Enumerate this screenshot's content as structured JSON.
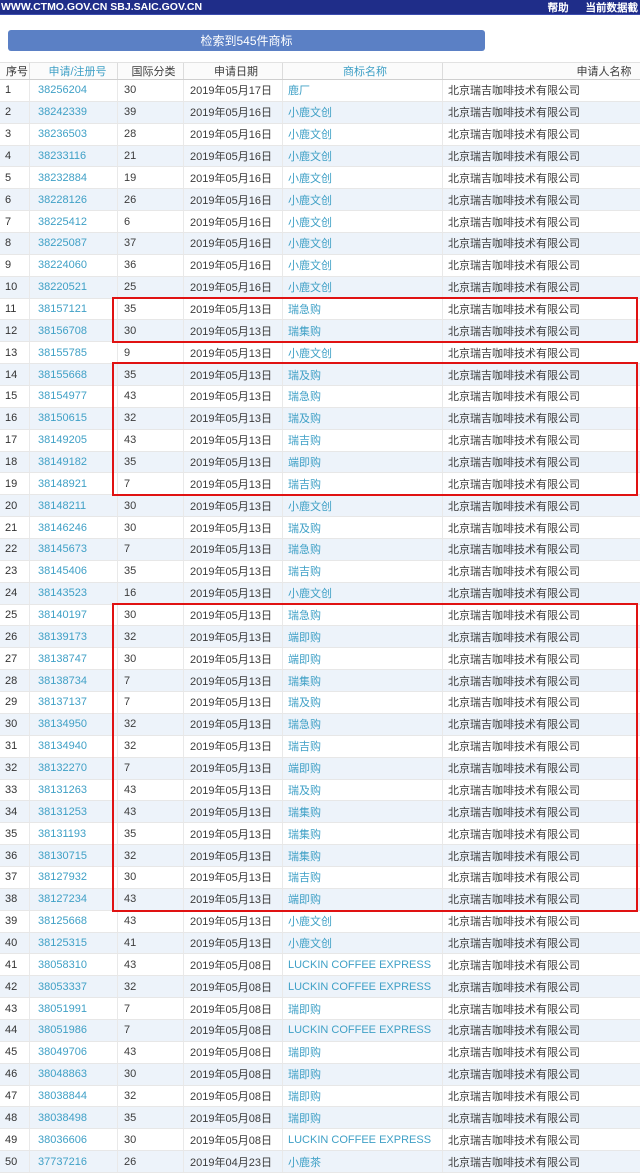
{
  "topbar": {
    "site_label": "WWW.CTMO.GOV.CN SBJ.SAIC.GOV.CN",
    "help_label": "帮助",
    "data_cutoff_label": "当前数据截"
  },
  "banner": {
    "result_text": "检索到545件商标"
  },
  "colors": {
    "topbar_bg": "#1f2d89",
    "banner_bg": "#5b80c5",
    "link": "#3fa0c6",
    "row_alt_bg": "#edf3fa",
    "highlight_border": "#e01212"
  },
  "table": {
    "headers": [
      "序号",
      "申请/注册号",
      "国际分类",
      "申请日期",
      "商标名称",
      "申请人名称"
    ],
    "rows": [
      [
        "1",
        "38256204",
        "30",
        "2019年05月17日",
        "鹿厂",
        "北京瑞吉咖啡技术有限公司"
      ],
      [
        "2",
        "38242339",
        "39",
        "2019年05月16日",
        "小鹿文创",
        "北京瑞吉咖啡技术有限公司"
      ],
      [
        "3",
        "38236503",
        "28",
        "2019年05月16日",
        "小鹿文创",
        "北京瑞吉咖啡技术有限公司"
      ],
      [
        "4",
        "38233116",
        "21",
        "2019年05月16日",
        "小鹿文创",
        "北京瑞吉咖啡技术有限公司"
      ],
      [
        "5",
        "38232884",
        "19",
        "2019年05月16日",
        "小鹿文创",
        "北京瑞吉咖啡技术有限公司"
      ],
      [
        "6",
        "38228126",
        "26",
        "2019年05月16日",
        "小鹿文创",
        "北京瑞吉咖啡技术有限公司"
      ],
      [
        "7",
        "38225412",
        "6",
        "2019年05月16日",
        "小鹿文创",
        "北京瑞吉咖啡技术有限公司"
      ],
      [
        "8",
        "38225087",
        "37",
        "2019年05月16日",
        "小鹿文创",
        "北京瑞吉咖啡技术有限公司"
      ],
      [
        "9",
        "38224060",
        "36",
        "2019年05月16日",
        "小鹿文创",
        "北京瑞吉咖啡技术有限公司"
      ],
      [
        "10",
        "38220521",
        "25",
        "2019年05月16日",
        "小鹿文创",
        "北京瑞吉咖啡技术有限公司"
      ],
      [
        "11",
        "38157121",
        "35",
        "2019年05月13日",
        "瑞急购",
        "北京瑞吉咖啡技术有限公司"
      ],
      [
        "12",
        "38156708",
        "30",
        "2019年05月13日",
        "瑞集购",
        "北京瑞吉咖啡技术有限公司"
      ],
      [
        "13",
        "38155785",
        "9",
        "2019年05月13日",
        "小鹿文创",
        "北京瑞吉咖啡技术有限公司"
      ],
      [
        "14",
        "38155668",
        "35",
        "2019年05月13日",
        "瑞及购",
        "北京瑞吉咖啡技术有限公司"
      ],
      [
        "15",
        "38154977",
        "43",
        "2019年05月13日",
        "瑞急购",
        "北京瑞吉咖啡技术有限公司"
      ],
      [
        "16",
        "38150615",
        "32",
        "2019年05月13日",
        "瑞及购",
        "北京瑞吉咖啡技术有限公司"
      ],
      [
        "17",
        "38149205",
        "43",
        "2019年05月13日",
        "瑞吉购",
        "北京瑞吉咖啡技术有限公司"
      ],
      [
        "18",
        "38149182",
        "35",
        "2019年05月13日",
        "端即购",
        "北京瑞吉咖啡技术有限公司"
      ],
      [
        "19",
        "38148921",
        "7",
        "2019年05月13日",
        "瑞吉购",
        "北京瑞吉咖啡技术有限公司"
      ],
      [
        "20",
        "38148211",
        "30",
        "2019年05月13日",
        "小鹿文创",
        "北京瑞吉咖啡技术有限公司"
      ],
      [
        "21",
        "38146246",
        "30",
        "2019年05月13日",
        "瑞及购",
        "北京瑞吉咖啡技术有限公司"
      ],
      [
        "22",
        "38145673",
        "7",
        "2019年05月13日",
        "瑞急购",
        "北京瑞吉咖啡技术有限公司"
      ],
      [
        "23",
        "38145406",
        "35",
        "2019年05月13日",
        "瑞吉购",
        "北京瑞吉咖啡技术有限公司"
      ],
      [
        "24",
        "38143523",
        "16",
        "2019年05月13日",
        "小鹿文创",
        "北京瑞吉咖啡技术有限公司"
      ],
      [
        "25",
        "38140197",
        "30",
        "2019年05月13日",
        "瑞急购",
        "北京瑞吉咖啡技术有限公司"
      ],
      [
        "26",
        "38139173",
        "32",
        "2019年05月13日",
        "端即购",
        "北京瑞吉咖啡技术有限公司"
      ],
      [
        "27",
        "38138747",
        "30",
        "2019年05月13日",
        "端即购",
        "北京瑞吉咖啡技术有限公司"
      ],
      [
        "28",
        "38138734",
        "7",
        "2019年05月13日",
        "瑞集购",
        "北京瑞吉咖啡技术有限公司"
      ],
      [
        "29",
        "38137137",
        "7",
        "2019年05月13日",
        "瑞及购",
        "北京瑞吉咖啡技术有限公司"
      ],
      [
        "30",
        "38134950",
        "32",
        "2019年05月13日",
        "瑞急购",
        "北京瑞吉咖啡技术有限公司"
      ],
      [
        "31",
        "38134940",
        "32",
        "2019年05月13日",
        "瑞吉购",
        "北京瑞吉咖啡技术有限公司"
      ],
      [
        "32",
        "38132270",
        "7",
        "2019年05月13日",
        "端即购",
        "北京瑞吉咖啡技术有限公司"
      ],
      [
        "33",
        "38131263",
        "43",
        "2019年05月13日",
        "瑞及购",
        "北京瑞吉咖啡技术有限公司"
      ],
      [
        "34",
        "38131253",
        "43",
        "2019年05月13日",
        "瑞集购",
        "北京瑞吉咖啡技术有限公司"
      ],
      [
        "35",
        "38131193",
        "35",
        "2019年05月13日",
        "瑞集购",
        "北京瑞吉咖啡技术有限公司"
      ],
      [
        "36",
        "38130715",
        "32",
        "2019年05月13日",
        "瑞集购",
        "北京瑞吉咖啡技术有限公司"
      ],
      [
        "37",
        "38127932",
        "30",
        "2019年05月13日",
        "瑞吉购",
        "北京瑞吉咖啡技术有限公司"
      ],
      [
        "38",
        "38127234",
        "43",
        "2019年05月13日",
        "端即购",
        "北京瑞吉咖啡技术有限公司"
      ],
      [
        "39",
        "38125668",
        "43",
        "2019年05月13日",
        "小鹿文创",
        "北京瑞吉咖啡技术有限公司"
      ],
      [
        "40",
        "38125315",
        "41",
        "2019年05月13日",
        "小鹿文创",
        "北京瑞吉咖啡技术有限公司"
      ],
      [
        "41",
        "38058310",
        "43",
        "2019年05月08日",
        "LUCKIN COFFEE EXPRESS",
        "北京瑞吉咖啡技术有限公司"
      ],
      [
        "42",
        "38053337",
        "32",
        "2019年05月08日",
        "LUCKIN COFFEE EXPRESS",
        "北京瑞吉咖啡技术有限公司"
      ],
      [
        "43",
        "38051991",
        "7",
        "2019年05月08日",
        "瑞即购",
        "北京瑞吉咖啡技术有限公司"
      ],
      [
        "44",
        "38051986",
        "7",
        "2019年05月08日",
        "LUCKIN COFFEE EXPRESS",
        "北京瑞吉咖啡技术有限公司"
      ],
      [
        "45",
        "38049706",
        "43",
        "2019年05月08日",
        "瑞即购",
        "北京瑞吉咖啡技术有限公司"
      ],
      [
        "46",
        "38048863",
        "30",
        "2019年05月08日",
        "瑞即购",
        "北京瑞吉咖啡技术有限公司"
      ],
      [
        "47",
        "38038844",
        "32",
        "2019年05月08日",
        "瑞即购",
        "北京瑞吉咖啡技术有限公司"
      ],
      [
        "48",
        "38038498",
        "35",
        "2019年05月08日",
        "瑞即购",
        "北京瑞吉咖啡技术有限公司"
      ],
      [
        "49",
        "38036606",
        "30",
        "2019年05月08日",
        "LUCKIN COFFEE EXPRESS",
        "北京瑞吉咖啡技术有限公司"
      ],
      [
        "50",
        "37737216",
        "26",
        "2019年04月23日",
        "小鹿茶",
        "北京瑞吉咖啡技术有限公司"
      ]
    ]
  },
  "highlights": {
    "groups": [
      {
        "from_row": 11,
        "to_row": 12
      },
      {
        "from_row": 14,
        "to_row": 19
      },
      {
        "from_row": 25,
        "to_row": 38
      }
    ]
  }
}
